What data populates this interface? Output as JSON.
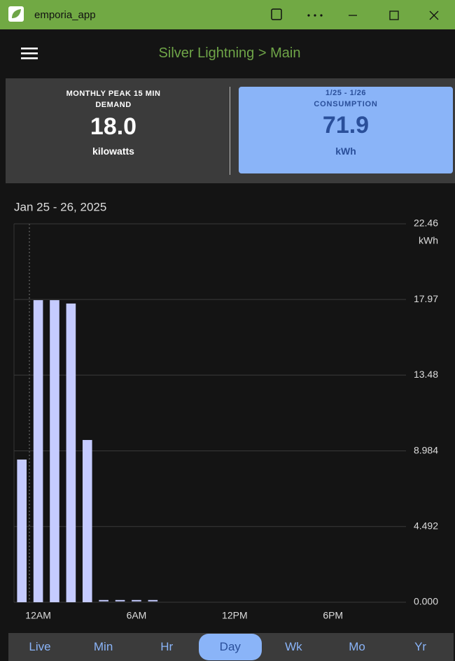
{
  "window": {
    "title": "emporia_app"
  },
  "header": {
    "title": "Silver Lightning > Main"
  },
  "cards": [
    {
      "label": "MONTHLY PEAK 15 MIN DEMAND",
      "value": "18.0",
      "unit": "kilowatts"
    },
    {
      "range": "1/25 - 1/26",
      "label": "CONSUMPTION",
      "value": "71.9",
      "unit": "kWh"
    }
  ],
  "chart_data": {
    "type": "bar",
    "title": "Jan 25 - 26, 2025",
    "y_unit": "kWh",
    "color": "#c5cbff",
    "categories": [
      null,
      "12AM",
      null,
      null,
      null,
      null,
      null,
      "6AM",
      null,
      null,
      null,
      null,
      null,
      "12PM",
      null,
      null,
      null,
      null,
      null,
      "6PM",
      null,
      null,
      null,
      null
    ],
    "values": [
      8.47,
      17.93,
      17.93,
      17.73,
      9.63,
      0.05,
      0.05,
      0.05,
      0.05,
      null,
      null,
      null,
      null,
      null,
      null,
      null,
      null,
      null,
      null,
      null,
      null,
      null,
      null,
      null
    ],
    "ylim": [
      0,
      22.46
    ],
    "yticks": [
      {
        "value": 0,
        "label": "0.000"
      },
      4.492,
      8.984,
      13.48,
      17.97,
      22.46
    ],
    "grid": true
  },
  "tabs": {
    "items": [
      "Live",
      "Min",
      "Hr",
      "Day",
      "Wk",
      "Mo",
      "Yr"
    ],
    "selected": 3
  }
}
